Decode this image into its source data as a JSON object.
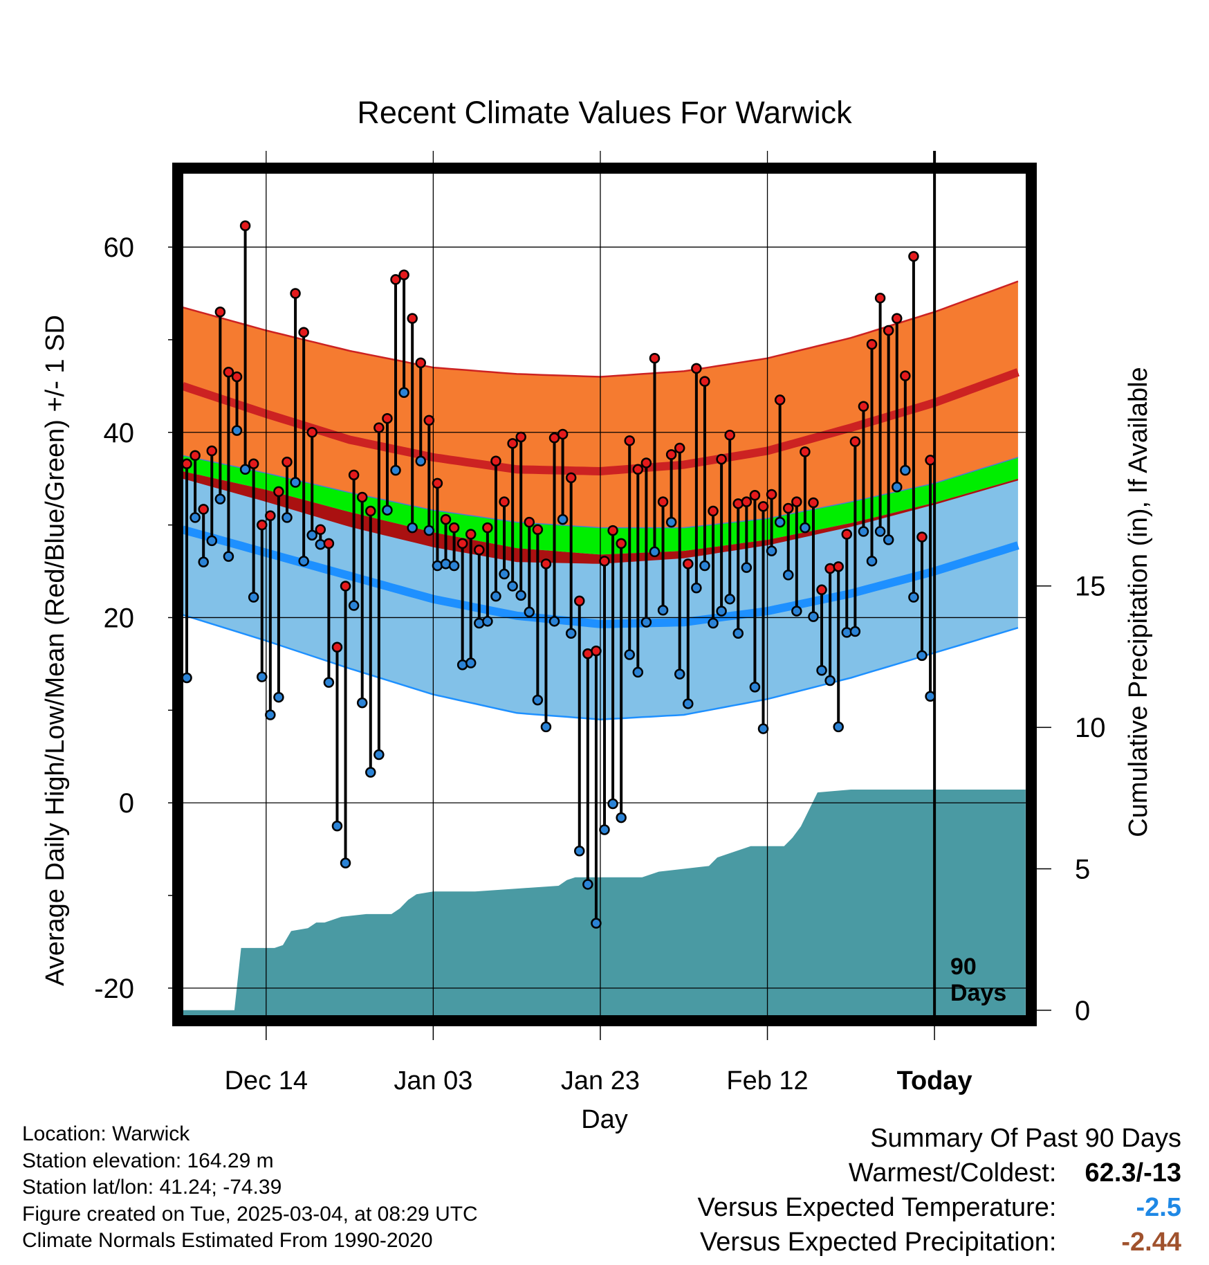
{
  "chart_data": {
    "type": "line",
    "title": "Recent Climate Values For Warwick",
    "xlabel": "Day",
    "ylabel": "Average Daily High/Low/Mean (Red/Blue/Green) +/- 1 SD",
    "y2label": "Cumulative Precipitation (in), If Available",
    "ylim": [
      -23,
      68
    ],
    "y2lim": [
      -0.2,
      29.6
    ],
    "yticks": [
      -20,
      0,
      20,
      40,
      60
    ],
    "y2ticks": [
      0,
      5,
      10,
      15
    ],
    "xlim": [
      0,
      101
    ],
    "xticks": [
      {
        "day": 10,
        "label": "Dec 14"
      },
      {
        "day": 30,
        "label": "Jan 03"
      },
      {
        "day": 50,
        "label": "Jan 23"
      },
      {
        "day": 70,
        "label": "Feb 12"
      },
      {
        "day": 90,
        "label": "Today"
      }
    ],
    "window_label": "90 Days",
    "normals": {
      "days": [
        0,
        10,
        20,
        30,
        40,
        50,
        60,
        70,
        80,
        90,
        100
      ],
      "high_plus_sd": [
        53.5,
        51.0,
        48.8,
        47.0,
        46.3,
        46.0,
        46.6,
        48.0,
        50.2,
        53.0,
        56.3
      ],
      "high_mean": [
        45.0,
        42.0,
        39.2,
        37.3,
        36.0,
        35.8,
        36.5,
        38.0,
        40.5,
        43.2,
        46.5
      ],
      "mean_plus": [
        37.5,
        35.6,
        33.5,
        31.6,
        30.3,
        29.7,
        29.7,
        30.7,
        32.5,
        34.5,
        37.3
      ],
      "mean_minus": [
        35.8,
        33.8,
        31.4,
        29.2,
        27.5,
        26.8,
        27.2,
        28.4,
        30.2,
        32.4,
        35.0
      ],
      "mean_band_lo": [
        35.0,
        32.5,
        29.8,
        27.6,
        26.0,
        25.8,
        26.4,
        27.8,
        29.8,
        32.2,
        34.8
      ],
      "low_mean": [
        29.5,
        27.0,
        24.5,
        22.0,
        20.2,
        19.3,
        19.5,
        20.7,
        22.6,
        25.0,
        27.8
      ],
      "low_minus_sd": [
        20.3,
        17.5,
        14.5,
        11.7,
        9.7,
        9.0,
        9.5,
        11.2,
        13.5,
        16.2,
        18.9
      ]
    },
    "series": [
      {
        "name": "Daily High",
        "color": "#e41a1c",
        "values": [
          36.6,
          37.5,
          31.7,
          38.0,
          53.0,
          46.5,
          46.0,
          62.3,
          36.6,
          30.0,
          31.0,
          33.6,
          36.8,
          55.0,
          50.8,
          40.0,
          29.5,
          28.0,
          16.8,
          23.4,
          35.4,
          33.0,
          31.5,
          40.5,
          41.5,
          56.5,
          57.0,
          52.3,
          47.5,
          41.3,
          34.5,
          30.6,
          29.7,
          28.0,
          29.0,
          27.3,
          29.7,
          36.9,
          32.5,
          38.8,
          39.5,
          30.3,
          29.5,
          25.8,
          39.4,
          39.8,
          35.1,
          21.8,
          16.1,
          16.4,
          26.1,
          29.4,
          28.0,
          39.1,
          36.0,
          36.7,
          48.0,
          32.5,
          37.6,
          38.3,
          25.8,
          46.9,
          45.5,
          31.5,
          37.1,
          39.7,
          32.3,
          32.5,
          33.2,
          32.0,
          33.3,
          43.5,
          31.8,
          32.5,
          37.9,
          32.4,
          23.0,
          25.3,
          25.5,
          29.0,
          39.0,
          42.8,
          49.5,
          54.5,
          51.0,
          52.3,
          46.1,
          59.0,
          28.7,
          37.0
        ]
      },
      {
        "name": "Daily Low",
        "color": "#2b83d6",
        "values": [
          13.5,
          30.8,
          26.0,
          28.3,
          32.8,
          26.6,
          40.2,
          36.0,
          22.2,
          13.6,
          9.5,
          11.4,
          30.8,
          34.6,
          26.1,
          28.9,
          27.9,
          13.0,
          -2.5,
          -6.5,
          21.3,
          10.8,
          3.3,
          5.2,
          31.6,
          35.9,
          44.3,
          29.7,
          36.9,
          29.4,
          25.6,
          25.8,
          25.6,
          14.9,
          15.1,
          19.4,
          19.6,
          22.3,
          24.7,
          23.4,
          22.4,
          20.6,
          11.1,
          8.2,
          19.6,
          30.6,
          18.3,
          -5.2,
          -8.8,
          -13.0,
          -2.9,
          -0.1,
          -1.6,
          16.0,
          14.1,
          19.5,
          27.1,
          20.8,
          30.3,
          13.9,
          10.7,
          23.2,
          25.6,
          19.4,
          20.7,
          22.0,
          18.3,
          25.4,
          12.5,
          8.0,
          27.2,
          30.3,
          24.6,
          20.7,
          29.7,
          20.1,
          14.3,
          13.2,
          8.2,
          18.4,
          18.5,
          29.3,
          26.1,
          29.3,
          28.4,
          34.1,
          35.9,
          22.2,
          15.9,
          11.5
        ]
      },
      {
        "name": "Cumulative Precipitation",
        "color": "#4a9aa3",
        "days": [
          0,
          6.2,
          7,
          11,
          12,
          13,
          15,
          16,
          17,
          19,
          22,
          25,
          26,
          27,
          28,
          30,
          35,
          40,
          45,
          46,
          47,
          55,
          57,
          60,
          63,
          64,
          65,
          68,
          72,
          73,
          74,
          76,
          80,
          85,
          90,
          100.9
        ],
        "values": [
          0,
          0,
          2.2,
          2.2,
          2.3,
          2.8,
          2.9,
          3.1,
          3.1,
          3.3,
          3.4,
          3.4,
          3.6,
          3.9,
          4.1,
          4.2,
          4.2,
          4.3,
          4.4,
          4.6,
          4.7,
          4.7,
          4.9,
          5.0,
          5.1,
          5.4,
          5.5,
          5.8,
          5.8,
          6.1,
          6.5,
          7.7,
          7.8,
          7.8,
          7.8,
          7.8
        ]
      }
    ]
  },
  "info": {
    "location": "Location: Warwick",
    "elevation": "Station elevation: 164.29 m",
    "latlon": "Station lat/lon: 41.24; -74.39",
    "created": "Figure created on Tue, 2025-03-04, at 08:29 UTC",
    "normals": "Climate Normals Estimated From 1990-2020"
  },
  "summary": {
    "title": "Summary Of Past 90 Days",
    "warmest_label": "Warmest/Coldest:",
    "warmest_value": "62.3/-13",
    "temp_label": "Versus Expected Temperature:",
    "temp_value": "-2.5",
    "temp_color": "#1e88e5",
    "precip_label": "Versus Expected Precipitation:",
    "precip_value": "-2.44",
    "precip_color": "#a0522d"
  },
  "colors": {
    "orange_band": "#f57b30",
    "high_line": "#cc2222",
    "green_band": "#00ee00",
    "mean_dark": "#aa1111",
    "blue_band": "#82c1e8",
    "low_line": "#1e90ff",
    "precip": "#4a9aa3"
  }
}
